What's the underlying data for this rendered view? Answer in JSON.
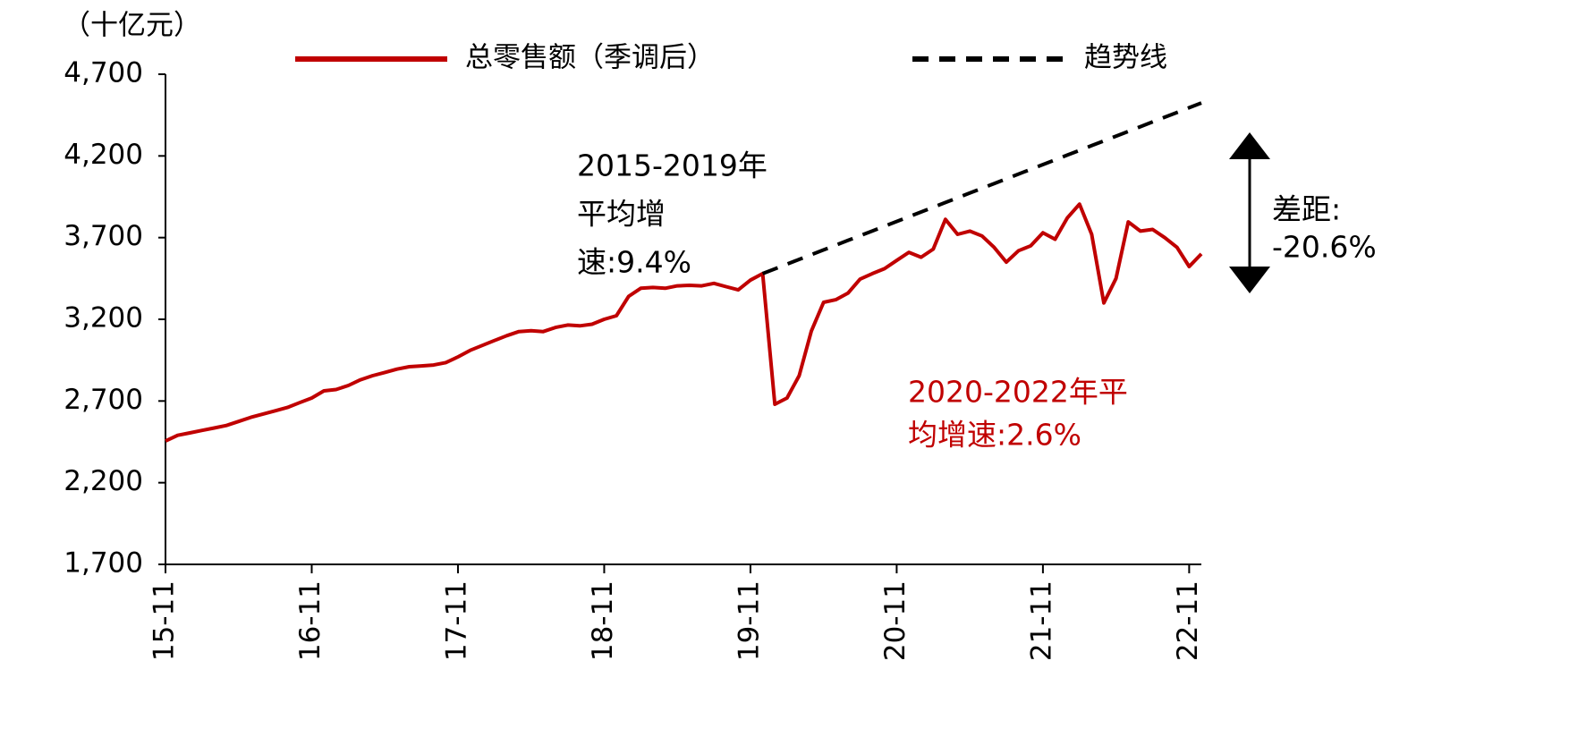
{
  "chart_data": {
    "type": "line",
    "y_axis_label": "（十亿元）",
    "categories": [
      "15-11",
      null,
      null,
      null,
      null,
      null,
      null,
      null,
      null,
      null,
      null,
      null,
      "16-11",
      null,
      null,
      null,
      null,
      null,
      null,
      null,
      null,
      null,
      null,
      null,
      "17-11",
      null,
      null,
      null,
      null,
      null,
      null,
      null,
      null,
      null,
      null,
      null,
      "18-11",
      null,
      null,
      null,
      null,
      null,
      null,
      null,
      null,
      null,
      null,
      null,
      "19-11",
      null,
      null,
      null,
      null,
      null,
      null,
      null,
      null,
      null,
      null,
      null,
      "20-11",
      null,
      null,
      null,
      null,
      null,
      null,
      null,
      null,
      null,
      null,
      null,
      "21-11",
      null,
      null,
      null,
      null,
      null,
      null,
      null,
      null,
      null,
      null,
      null,
      "22-11",
      null
    ],
    "series": [
      {
        "name": "总零售额（季调后）",
        "color": "#c00000",
        "dash": false,
        "values": [
          2455,
          2490,
          2505,
          2520,
          2535,
          2550,
          2575,
          2600,
          2620,
          2640,
          2660,
          2690,
          2718,
          2762,
          2770,
          2795,
          2830,
          2855,
          2875,
          2895,
          2910,
          2915,
          2920,
          2935,
          2970,
          3010,
          3040,
          3070,
          3100,
          3125,
          3130,
          3125,
          3150,
          3165,
          3160,
          3170,
          3200,
          3222,
          3340,
          3390,
          3395,
          3390,
          3405,
          3408,
          3405,
          3420,
          3400,
          3380,
          3440,
          3480,
          2680,
          2718,
          2855,
          3128,
          3304,
          3320,
          3360,
          3446,
          3480,
          3510,
          3560,
          3610,
          3580,
          3630,
          3812,
          3720,
          3740,
          3710,
          3640,
          3550,
          3620,
          3650,
          3730,
          3690,
          3820,
          3905,
          3720,
          3300,
          3450,
          3796,
          3740,
          3750,
          3700,
          3640,
          3523,
          3600
        ]
      },
      {
        "name": "趋势线",
        "color": "#000000",
        "dash": true,
        "values": [
          null,
          null,
          null,
          null,
          null,
          null,
          null,
          null,
          null,
          null,
          null,
          null,
          null,
          null,
          null,
          null,
          null,
          null,
          null,
          null,
          null,
          null,
          null,
          null,
          null,
          null,
          null,
          null,
          null,
          null,
          null,
          null,
          null,
          null,
          null,
          null,
          null,
          null,
          null,
          null,
          null,
          null,
          null,
          null,
          null,
          null,
          null,
          null,
          null,
          3480,
          3509,
          3538,
          3567,
          3596,
          3625,
          3654,
          3683,
          3712,
          3741,
          3770,
          3799,
          3828,
          3857,
          3886,
          3915,
          3944,
          3973,
          4002,
          4031,
          4060,
          4089,
          4118,
          4147,
          4176,
          4205,
          4234,
          4263,
          4292,
          4321,
          4350,
          4379,
          4408,
          4437,
          4466,
          4495,
          4524
        ]
      }
    ],
    "ylim": [
      1700,
      4700
    ],
    "yticks": [
      {
        "value": 1700,
        "label": "1,700"
      },
      {
        "value": 2200,
        "label": "2,200"
      },
      {
        "value": 2700,
        "label": "2,700"
      },
      {
        "value": 3200,
        "label": "3,200"
      },
      {
        "value": 3700,
        "label": "3,700"
      },
      {
        "value": 4200,
        "label": "4,200"
      },
      {
        "value": 4700,
        "label": "4,700"
      }
    ],
    "annotations": [
      {
        "lines": [
          "2015-2019年",
          "平均增",
          "速:9.4%"
        ],
        "color": "#000000"
      },
      {
        "lines": [
          "2020-2022年平",
          "均增速:2.6%"
        ],
        "color": "#c00000"
      },
      {
        "lines": [
          "差距:",
          "-20.6%"
        ],
        "color": "#000000"
      }
    ]
  }
}
